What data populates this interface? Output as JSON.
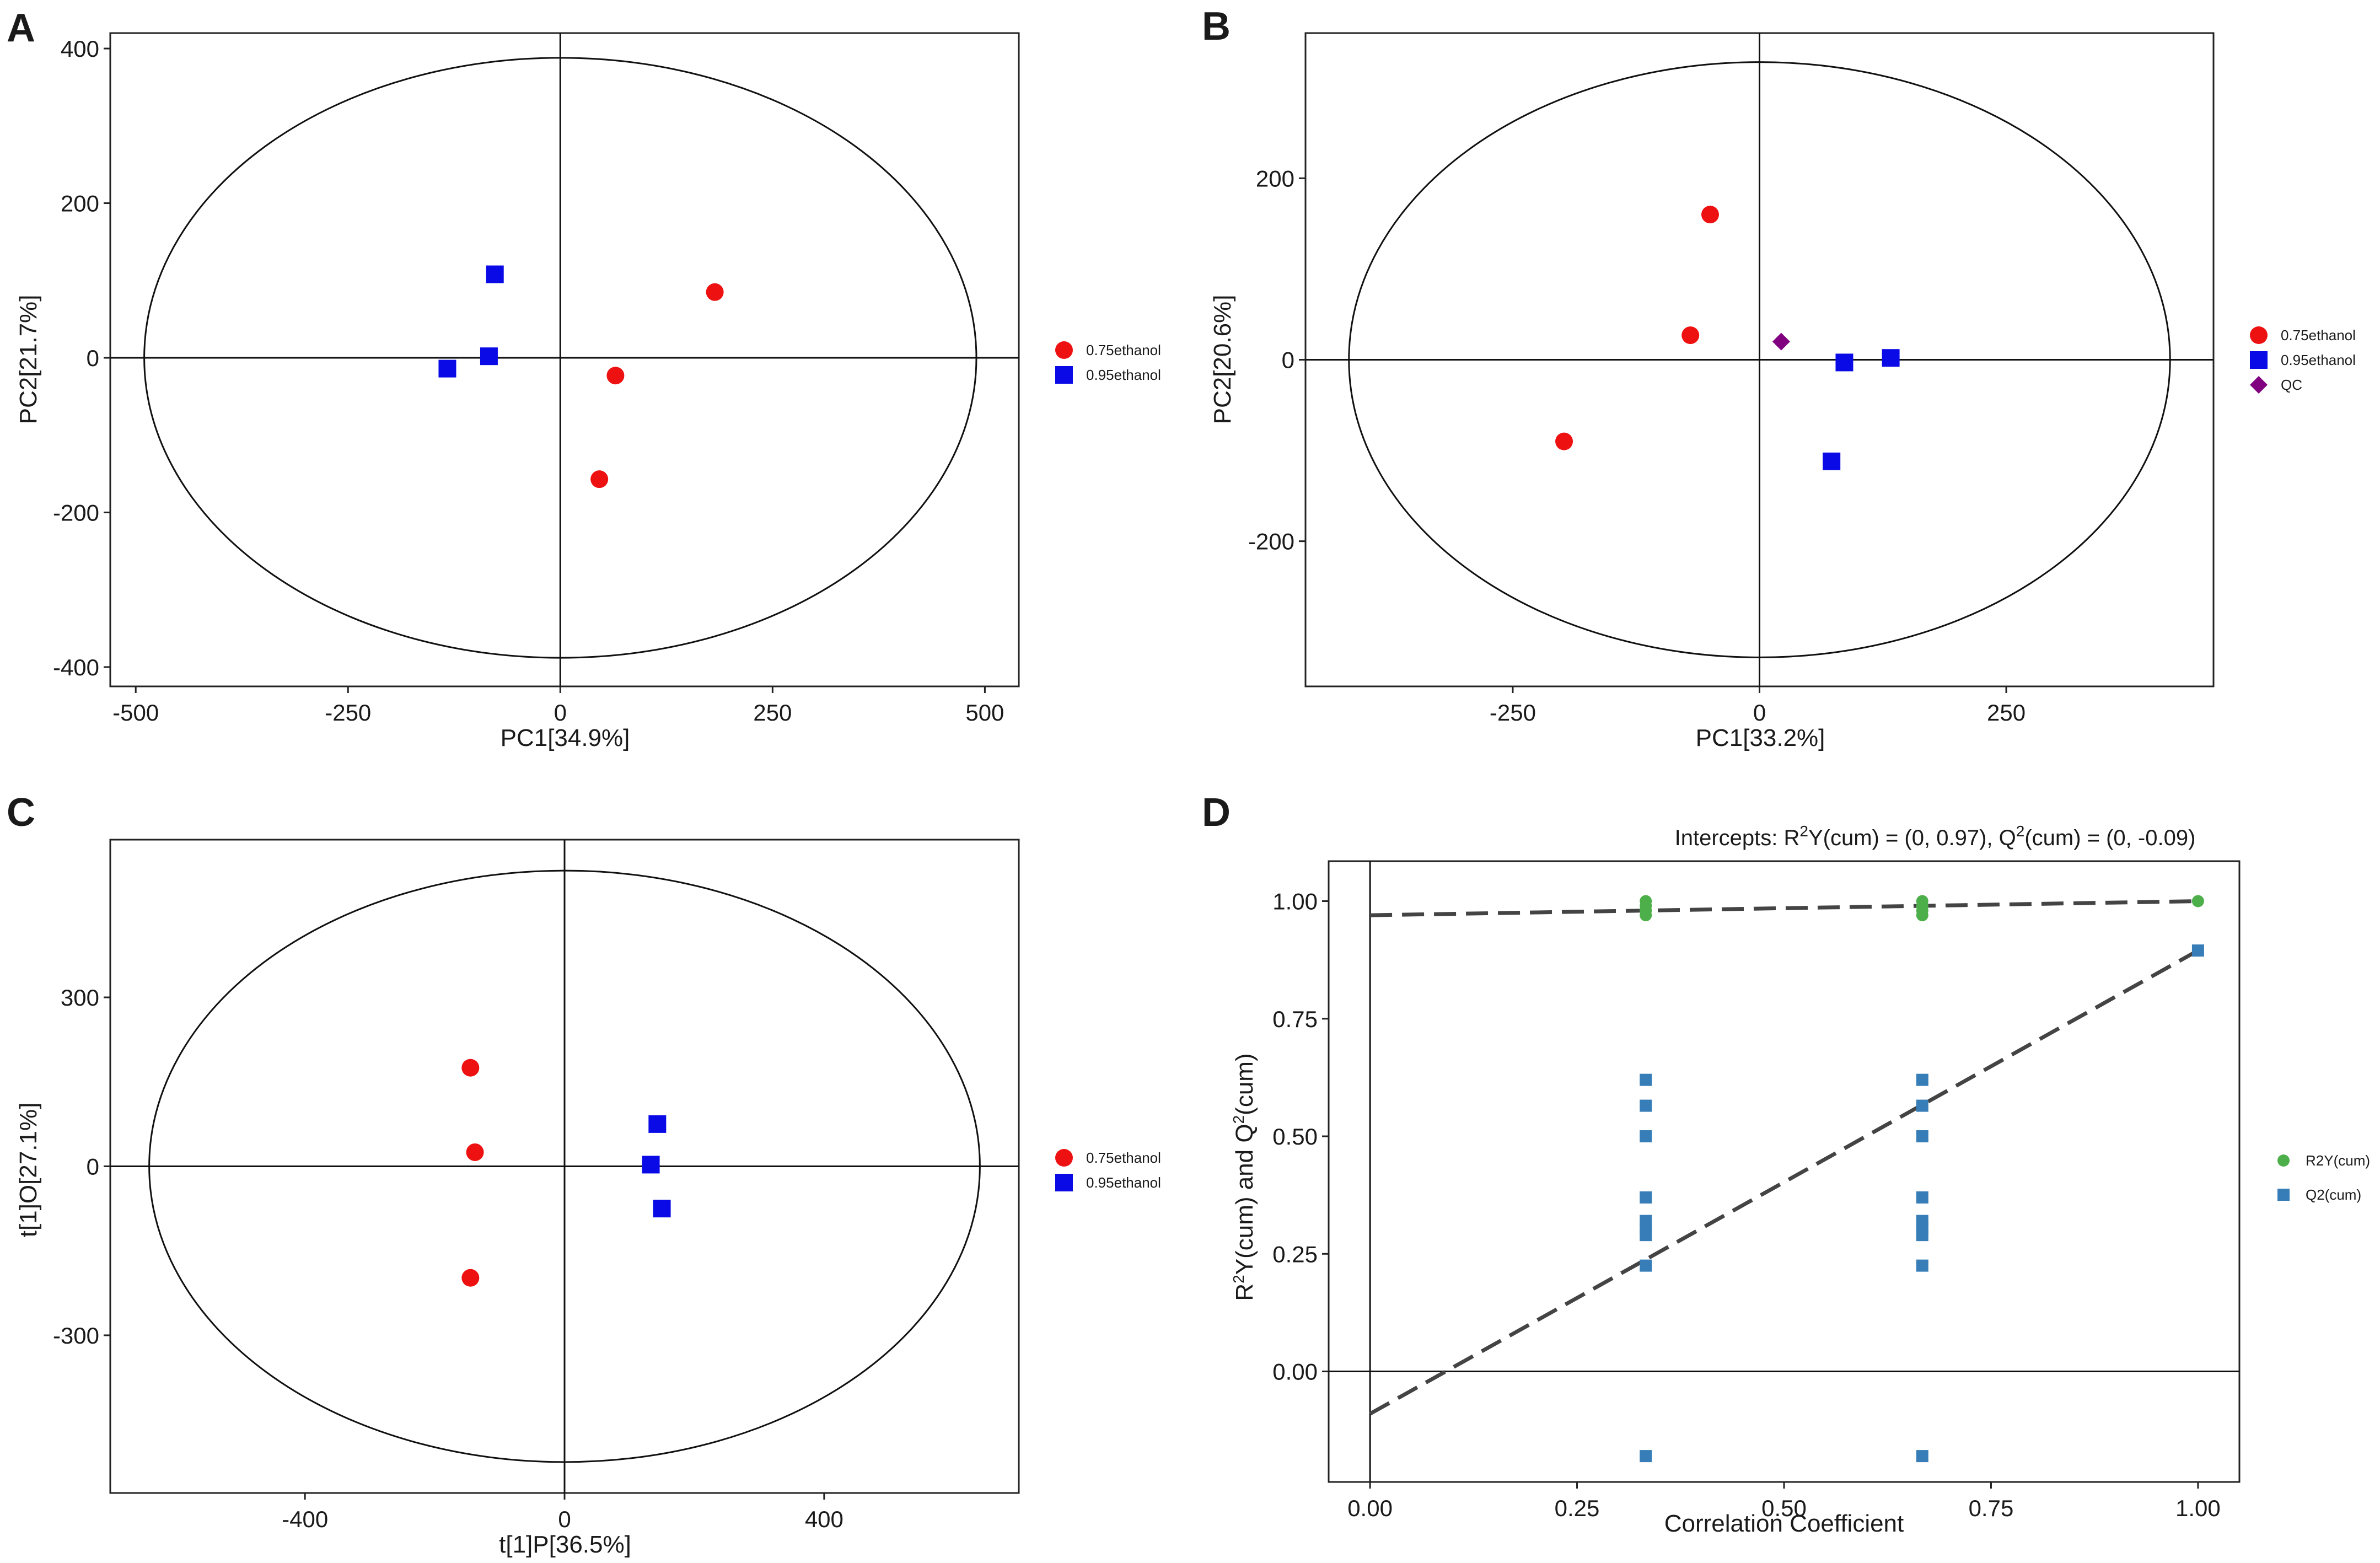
{
  "colors": {
    "group_075": "#ee1111",
    "group_095": "#0a0ae6",
    "qc": "#800080",
    "r2y": "#4daf4a",
    "q2": "#377eb8",
    "line": "#444444"
  },
  "chart_data": [
    {
      "panel": "A",
      "type": "scatter",
      "xlabel": "PC1[34.9%]",
      "ylabel": "PC2[21.7%]",
      "xlim": [
        -530,
        540
      ],
      "ylim": [
        -425,
        420
      ],
      "xticks": [
        -500,
        -250,
        0,
        250,
        500
      ],
      "yticks": [
        -400,
        -200,
        0,
        200,
        400
      ],
      "ellipse": {
        "rx": 490,
        "ry": 388
      },
      "series": [
        {
          "name": "0.75ethanol",
          "marker": "circle",
          "color": "#ee1111",
          "points": [
            [
              182,
              85
            ],
            [
              65,
              -23
            ],
            [
              46,
              -157
            ]
          ]
        },
        {
          "name": "0.95ethanol",
          "marker": "square",
          "color": "#0a0ae6",
          "points": [
            [
              -77,
              108
            ],
            [
              -84,
              2
            ],
            [
              -133,
              -14
            ]
          ]
        }
      ]
    },
    {
      "panel": "B",
      "type": "scatter",
      "xlabel": "PC1[33.2%]",
      "ylabel": "PC2[20.6%]",
      "xlim": [
        -460,
        460
      ],
      "ylim": [
        -360,
        360
      ],
      "xticks": [
        -250,
        0,
        250
      ],
      "yticks": [
        -200,
        0,
        200
      ],
      "ellipse": {
        "rx": 416,
        "ry": 328
      },
      "series": [
        {
          "name": "0.75ethanol",
          "marker": "circle",
          "color": "#ee1111",
          "points": [
            [
              -50,
              160
            ],
            [
              -70,
              27
            ],
            [
              -198,
              -90
            ]
          ]
        },
        {
          "name": "0.95ethanol",
          "marker": "square",
          "color": "#0a0ae6",
          "points": [
            [
              86,
              -3
            ],
            [
              133,
              2
            ],
            [
              73,
              -112
            ]
          ]
        },
        {
          "name": "QC",
          "marker": "diamond",
          "color": "#800080",
          "points": [
            [
              22,
              20
            ]
          ]
        }
      ]
    },
    {
      "panel": "C",
      "type": "scatter",
      "xlabel": "t[1]P[36.5%]",
      "ylabel": "t[1]O[27.1%]",
      "xlim": [
        -700,
        700
      ],
      "ylim": [
        -580,
        580
      ],
      "xticks": [
        -400,
        0,
        400
      ],
      "yticks": [
        -300,
        0,
        300
      ],
      "ellipse": {
        "rx": 640,
        "ry": 525
      },
      "series": [
        {
          "name": "0.75ethanol",
          "marker": "circle",
          "color": "#ee1111",
          "points": [
            [
              -145,
              175
            ],
            [
              -138,
              25
            ],
            [
              -145,
              -198
            ]
          ]
        },
        {
          "name": "0.95ethanol",
          "marker": "square",
          "color": "#0a0ae6",
          "points": [
            [
              143,
              75
            ],
            [
              133,
              3
            ],
            [
              150,
              -75
            ]
          ]
        }
      ]
    },
    {
      "panel": "D",
      "type": "scatter",
      "title": "Intercepts: R2Y(cum) = (0, 0.97), Q2(cum) = (0, -0.09)",
      "title_parts": {
        "a": "Intercepts: R",
        "b": "2",
        "c": "Y(cum) = (0, 0.97), Q",
        "d": "2",
        "e": "(cum) = (0, -0.09)"
      },
      "xlabel": "Correlation Coefficient",
      "ylabel_parts": {
        "a": "R",
        "b": "2",
        "c": "Y(cum) and Q",
        "d": "2",
        "e": "(cum)"
      },
      "xlim": [
        -0.05,
        1.05
      ],
      "ylim": [
        -0.235,
        1.085
      ],
      "xticks": [
        0.0,
        0.25,
        0.5,
        0.75,
        1.0
      ],
      "xtick_labels": [
        "0.00",
        "0.25",
        "0.50",
        "0.75",
        "1.00"
      ],
      "yticks": [
        0.0,
        0.25,
        0.5,
        0.75,
        1.0
      ],
      "ytick_labels": [
        "0.00",
        "0.25",
        "0.50",
        "0.75",
        "1.00"
      ],
      "series": [
        {
          "name": "R2Y(cum)",
          "marker": "circle",
          "color": "#4daf4a",
          "points": [
            [
              0.333,
              1.0
            ],
            [
              0.333,
              0.99
            ],
            [
              0.333,
              0.98
            ],
            [
              0.333,
              0.97
            ],
            [
              0.667,
              1.0
            ],
            [
              0.667,
              0.99
            ],
            [
              0.667,
              0.98
            ],
            [
              0.667,
              0.97
            ],
            [
              1.0,
              1.0
            ]
          ]
        },
        {
          "name": "Q2(cum)",
          "marker": "square",
          "color": "#377eb8",
          "points": [
            [
              0.333,
              0.62
            ],
            [
              0.333,
              0.565
            ],
            [
              0.333,
              0.5
            ],
            [
              0.333,
              0.37
            ],
            [
              0.333,
              0.32
            ],
            [
              0.333,
              0.305
            ],
            [
              0.333,
              0.29
            ],
            [
              0.333,
              0.225
            ],
            [
              0.333,
              -0.18
            ],
            [
              0.667,
              0.62
            ],
            [
              0.667,
              0.565
            ],
            [
              0.667,
              0.5
            ],
            [
              0.667,
              0.37
            ],
            [
              0.667,
              0.32
            ],
            [
              0.667,
              0.305
            ],
            [
              0.667,
              0.29
            ],
            [
              0.667,
              0.225
            ],
            [
              0.667,
              -0.18
            ],
            [
              1.0,
              0.895
            ]
          ]
        }
      ],
      "regression_lines": [
        {
          "name": "R2Y(cum)",
          "from": [
            0,
            0.97
          ],
          "to": [
            1.0,
            1.0
          ]
        },
        {
          "name": "Q2(cum)",
          "from": [
            0,
            -0.09
          ],
          "to": [
            1.0,
            0.895
          ]
        }
      ]
    }
  ]
}
